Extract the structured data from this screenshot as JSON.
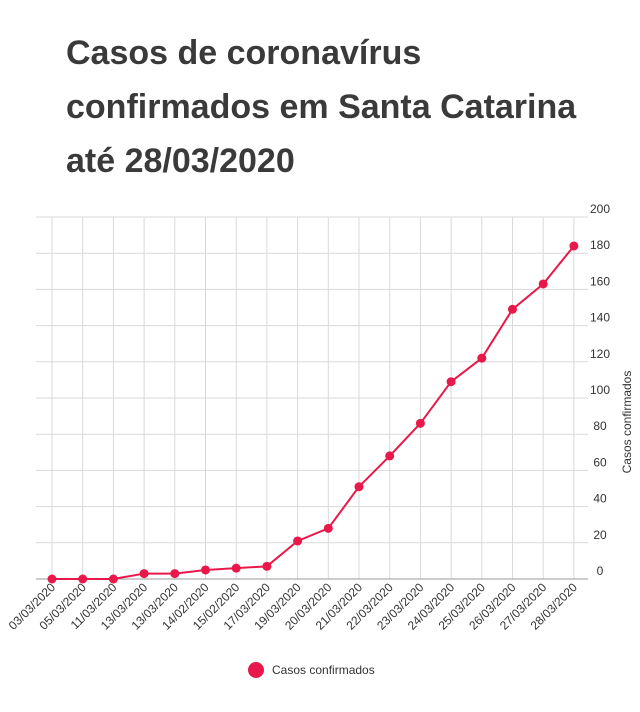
{
  "chart_data": {
    "type": "line",
    "title": "Casos de coronavírus confirmados em Santa Catarina até 28/03/2020",
    "ylabel": "Casos confirmados",
    "ylim": [
      0,
      200
    ],
    "yticks": [
      0,
      20,
      40,
      60,
      80,
      100,
      120,
      140,
      160,
      180,
      200
    ],
    "y_axis_side": "right",
    "grid": true,
    "legend": "bottom",
    "categories": [
      "03/03/2020",
      "05/03/2020",
      "11/03/2020",
      "13/03/2020",
      "13/03/2020",
      "14/02/2020",
      "15/02/2020",
      "17/03/2020",
      "19/03/2020",
      "20/03/2020",
      "21/03/2020",
      "22/03/2020",
      "23/03/2020",
      "24/03/2020",
      "25/03/2020",
      "26/03/2020",
      "27/03/2020",
      "28/03/2020"
    ],
    "series": [
      {
        "name": "Casos confirmados",
        "color": "#e8194a",
        "values": [
          0,
          0,
          0,
          3,
          3,
          5,
          6,
          7,
          21,
          28,
          51,
          68,
          86,
          109,
          122,
          149,
          163,
          184
        ]
      }
    ]
  }
}
